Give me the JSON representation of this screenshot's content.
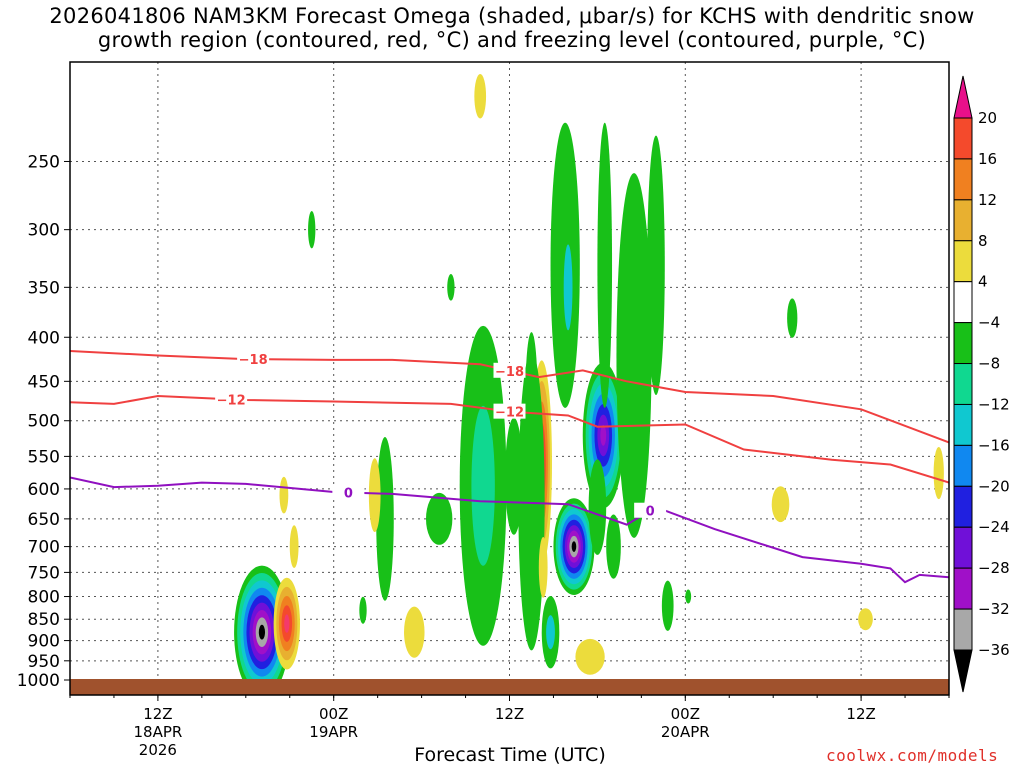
{
  "title": {
    "line1": "2026041806 NAM3KM Forecast Omega (shaded, μbar/s) for KCHS with dendritic snow",
    "line2": "growth region (contoured, red, °C) and freezing level (contoured, purple, °C)"
  },
  "credit": "coolwx.com/models",
  "chart_data": {
    "type": "time-height section",
    "xlabel": "Forecast Time (UTC)",
    "ylabel": "",
    "y_axis": {
      "unit": "hPa",
      "scale": "log",
      "range": [
        1000,
        200
      ],
      "ticks": [
        250,
        300,
        350,
        400,
        450,
        500,
        550,
        600,
        650,
        700,
        750,
        800,
        850,
        900,
        950,
        1000
      ]
    },
    "x_axis": {
      "range_hours_utc": [
        "2026-04-18 06Z",
        "2026-04-20 18Z"
      ],
      "ticks": [
        {
          "label": "12Z",
          "sub1": "18APR",
          "sub2": "2026",
          "hour": 6
        },
        {
          "label": "00Z",
          "sub1": "19APR",
          "sub2": "",
          "hour": 18
        },
        {
          "label": "12Z",
          "sub1": "",
          "sub2": "",
          "hour": 30
        },
        {
          "label": "00Z",
          "sub1": "20APR",
          "sub2": "",
          "hour": 42
        },
        {
          "label": "12Z",
          "sub1": "",
          "sub2": "",
          "hour": 54
        }
      ]
    },
    "grid": true,
    "colorbar": {
      "labels": [
        "20",
        "16",
        "12",
        "8",
        "4",
        "−4",
        "−8",
        "−12",
        "−16",
        "−20",
        "−24",
        "−28",
        "−32",
        "−36"
      ],
      "colors": [
        "#f43a6b",
        "#f44a2c",
        "#f08020",
        "#e8b030",
        "#ecdc3c",
        "#ffffff",
        "#18c018",
        "#10d890",
        "#10c8d0",
        "#1088f0",
        "#2020e0",
        "#7010d8",
        "#a010c8",
        "#a8a8a8",
        "#000000"
      ],
      "top_arrow": "#e8108a",
      "bottom_arrow": "#000000"
    },
    "contours": [
      {
        "name": "-18 °C",
        "label": "−18",
        "color": "#f04040",
        "points": [
          [
            0,
            415
          ],
          [
            6,
            420
          ],
          [
            12,
            424
          ],
          [
            18,
            425
          ],
          [
            22,
            425
          ],
          [
            28,
            430
          ],
          [
            32,
            445
          ],
          [
            35,
            437
          ],
          [
            38,
            450
          ],
          [
            42,
            463
          ],
          [
            48,
            468
          ],
          [
            54,
            485
          ],
          [
            60,
            530
          ]
        ]
      },
      {
        "name": "-12 °C",
        "label": "−12",
        "color": "#f04040",
        "points": [
          [
            0,
            476
          ],
          [
            3,
            478
          ],
          [
            6,
            468
          ],
          [
            12,
            473
          ],
          [
            18,
            475
          ],
          [
            26,
            478
          ],
          [
            30,
            488
          ],
          [
            34,
            493
          ],
          [
            36,
            508
          ],
          [
            42,
            505
          ],
          [
            46,
            540
          ],
          [
            52,
            555
          ],
          [
            56,
            562
          ],
          [
            60,
            590
          ]
        ]
      },
      {
        "name": "0 °C",
        "label": "0",
        "color": "#9010c0",
        "points": [
          [
            0,
            582
          ],
          [
            3,
            597
          ],
          [
            6,
            595
          ],
          [
            9,
            590
          ],
          [
            12,
            592
          ],
          [
            18,
            605
          ],
          [
            22,
            608
          ],
          [
            28,
            620
          ],
          [
            34,
            625
          ],
          [
            38,
            660
          ],
          [
            40,
            630
          ],
          [
            44,
            668
          ],
          [
            50,
            720
          ],
          [
            54,
            733
          ],
          [
            56,
            742
          ],
          [
            57,
            770
          ],
          [
            58,
            755
          ],
          [
            60,
            760
          ]
        ]
      }
    ],
    "omega_cells": [
      {
        "t": 13.1,
        "p": 880,
        "dt": 1.9,
        "dp": 310,
        "peak": -36
      },
      {
        "t": 14.8,
        "p": 860,
        "dt": 0.9,
        "dp": 210,
        "peak": 20
      },
      {
        "t": 28.2,
        "p": 595,
        "dt": 1.6,
        "dp": 480,
        "peak": -8
      },
      {
        "t": 32.2,
        "p": 560,
        "dt": 0.7,
        "dp": 300,
        "peak": 20
      },
      {
        "t": 34.4,
        "p": 700,
        "dt": 1.4,
        "dp": 180,
        "peak": -36
      },
      {
        "t": 36.4,
        "p": 520,
        "dt": 1.4,
        "dp": 200,
        "peak": -28
      }
    ]
  }
}
